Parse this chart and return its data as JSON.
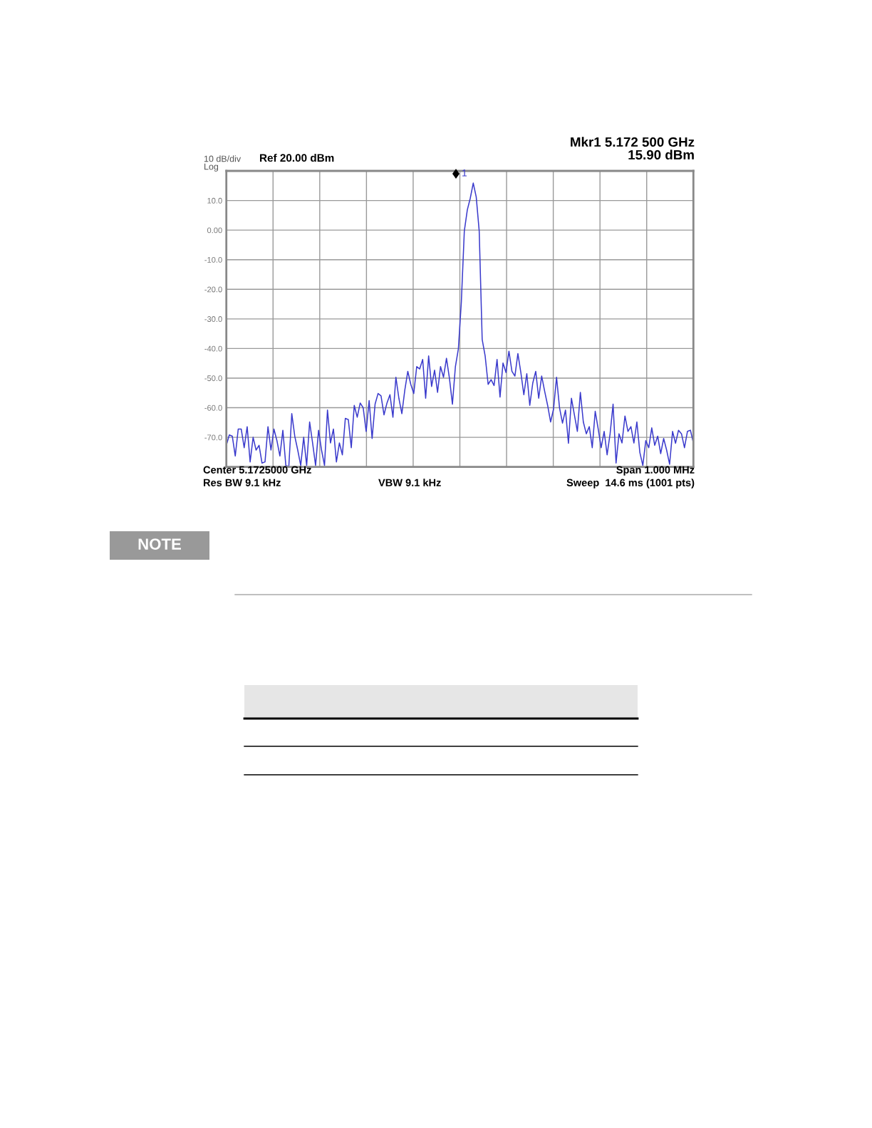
{
  "chart_data": {
    "type": "line",
    "categories": [
      null,
      null,
      null,
      null,
      null,
      null,
      null,
      null,
      null,
      null,
      null,
      null,
      null,
      null,
      null,
      null,
      null,
      null,
      null,
      null,
      null,
      null,
      null,
      null,
      null,
      null,
      null,
      null,
      null,
      null,
      null,
      null,
      null,
      null,
      null,
      null,
      null,
      null,
      null,
      null,
      null,
      null,
      null,
      null,
      null,
      null,
      null,
      null,
      null,
      null,
      null,
      null,
      null,
      null,
      null,
      null,
      null,
      null,
      null,
      null,
      null,
      null,
      null,
      null,
      null,
      null,
      null,
      null,
      null,
      null,
      null,
      null,
      null,
      null,
      null,
      null,
      null,
      null,
      null,
      null,
      null,
      null,
      null,
      null,
      null,
      null,
      null,
      null,
      null,
      null,
      null,
      null,
      null,
      null,
      null,
      null,
      null,
      null,
      null,
      null,
      null,
      null,
      null,
      null,
      null,
      null,
      null,
      null,
      null,
      null,
      null,
      null,
      null,
      null,
      null,
      null,
      null,
      null,
      null,
      null,
      null,
      null,
      null,
      null,
      null,
      null,
      null,
      null,
      null,
      null,
      null,
      null,
      null,
      null,
      null,
      null,
      null,
      null,
      null,
      null,
      null,
      null,
      null,
      null,
      null,
      null,
      null,
      null,
      null,
      null,
      null,
      null,
      null,
      null,
      null,
      null,
      null,
      null
    ],
    "ylim": [
      -80,
      20
    ],
    "yticks": [
      {
        "value": 20,
        "label": null
      },
      {
        "value": 10,
        "label": "10.0"
      },
      {
        "value": 0,
        "label": "0.00"
      },
      {
        "value": -10,
        "label": "-10.0"
      },
      {
        "value": -20,
        "label": "-20.0"
      },
      {
        "value": -30,
        "label": "-30.0"
      },
      {
        "value": -40,
        "label": "-40.0"
      },
      {
        "value": -50,
        "label": "-50.0"
      },
      {
        "value": -60,
        "label": "-60.0"
      },
      {
        "value": -70,
        "label": "-70.0"
      },
      {
        "value": -80,
        "label": null
      }
    ],
    "grid": true,
    "series": [
      {
        "color": "#3a3acc",
        "values": [
          -72.7,
          -69.2,
          -69.6,
          -76.3,
          -67.2,
          -67.2,
          -73.5,
          -66.4,
          -78.3,
          -70.0,
          -74.3,
          -72.7,
          -78.7,
          -78.3,
          -66.4,
          -74.3,
          -67.2,
          -71.1,
          -76.3,
          -67.6,
          -79.5,
          -79.9,
          -62.0,
          -69.6,
          -74.3,
          -79.5,
          -70.0,
          -79.5,
          -64.8,
          -71.9,
          -79.5,
          -67.6,
          -74.3,
          -79.5,
          -60.8,
          -71.9,
          -67.2,
          -78.3,
          -71.9,
          -75.9,
          -63.6,
          -64.0,
          -73.5,
          -59.2,
          -63.2,
          -58.4,
          -60.0,
          -68.0,
          -57.6,
          -70.4,
          -58.8,
          -55.2,
          -56.0,
          -62.4,
          -58.4,
          -55.6,
          -63.2,
          -49.7,
          -56.8,
          -62.0,
          -54.0,
          -47.7,
          -52.1,
          -55.2,
          -46.1,
          -46.9,
          -43.7,
          -56.8,
          -42.5,
          -52.8,
          -47.3,
          -54.8,
          -46.1,
          -49.7,
          -43.3,
          -50.1,
          -58.8,
          -46.1,
          -40.1,
          -24.2,
          -0.3,
          6.8,
          10.8,
          15.9,
          11.2,
          -0.3,
          -36.9,
          -42.5,
          -52.1,
          -50.5,
          -52.5,
          -43.7,
          -56.4,
          -44.9,
          -48.1,
          -40.9,
          -47.7,
          -49.3,
          -41.7,
          -48.1,
          -55.6,
          -48.5,
          -59.2,
          -51.7,
          -47.7,
          -56.8,
          -49.3,
          -54.4,
          -59.2,
          -64.8,
          -60.4,
          -49.7,
          -60.0,
          -65.2,
          -60.8,
          -72.0,
          -56.8,
          -62.4,
          -68.0,
          -54.8,
          -64.8,
          -68.8,
          -66.4,
          -73.5,
          -61.2,
          -67.2,
          -73.5,
          -68.0,
          -75.9,
          -68.8,
          -58.8,
          -78.7,
          -68.8,
          -71.9,
          -62.8,
          -68.0,
          -66.4,
          -71.9,
          -64.8,
          -75.1,
          -79.5,
          -71.1,
          -73.5,
          -66.8,
          -72.7,
          -69.6,
          -75.5,
          -70.4,
          -74.3,
          -79.1,
          -68.0,
          -72.0,
          -67.6,
          -68.8,
          -73.5,
          -68.0,
          -67.6,
          -71.9
        ]
      }
    ],
    "annotations": [
      "Mkr1 5.172 500 GHz",
      "15.90 dBm",
      "10 dB/div",
      "Log",
      "Ref 20.00 dBm",
      "Center 5.1725000 GHz",
      "Span 1.000 MHz",
      "Res BW 9.1 kHz",
      "VBW 9.1 kHz",
      "Sweep  14.6 ms (1001 pts)",
      "1",
      "NOTE"
    ]
  }
}
